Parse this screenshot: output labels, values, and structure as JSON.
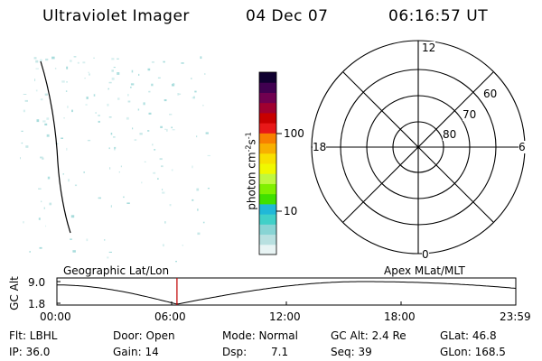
{
  "header": {
    "title": "Ultraviolet Imager",
    "date": "04 Dec 07",
    "time": "06:16:57 UT"
  },
  "colorbar": {
    "label_prefix": "photon cm",
    "label_exp1": "-2",
    "label_mid": "s",
    "label_exp2": "-1",
    "tick_high": "100",
    "tick_low": "10",
    "colors": [
      "#e8f4f4",
      "#b8e0e0",
      "#88d4d4",
      "#40d0c8",
      "#20b8d8",
      "#40e000",
      "#80f000",
      "#c0f840",
      "#f0f800",
      "#f8e000",
      "#f8b000",
      "#f88000",
      "#e81818",
      "#c80000",
      "#a00030",
      "#700050",
      "#400050",
      "#100030"
    ]
  },
  "polar": {
    "label_top": "12",
    "label_bottom": "0",
    "label_left": "18",
    "label_right": "6",
    "ring_labels": [
      "60",
      "70",
      "80"
    ]
  },
  "track": {
    "left_title": "Geographic Lat/Lon",
    "right_title": "Apex MLat/MLT",
    "yaxis_label": "GC Alt",
    "ymax": "9.0",
    "ymin": "1.8",
    "xticks": [
      "00:00",
      "06:00",
      "12:00",
      "18:00",
      "23:59"
    ],
    "current_time_hours": 6.28,
    "marker_color": "#c00000"
  },
  "info": {
    "filter": "Flt: LBHL",
    "door": "Door: Open",
    "mode": "Mode: Normal",
    "gc_alt": "GC Alt: 2.4 Re",
    "glat": "GLat: 46.8",
    "ip": "IP: 36.0",
    "gain": "Gain: 14",
    "dsp_label": "Dsp:",
    "dsp_value": "7.1",
    "seq": "Seq: 39",
    "glon": "GLon: 168.5"
  }
}
